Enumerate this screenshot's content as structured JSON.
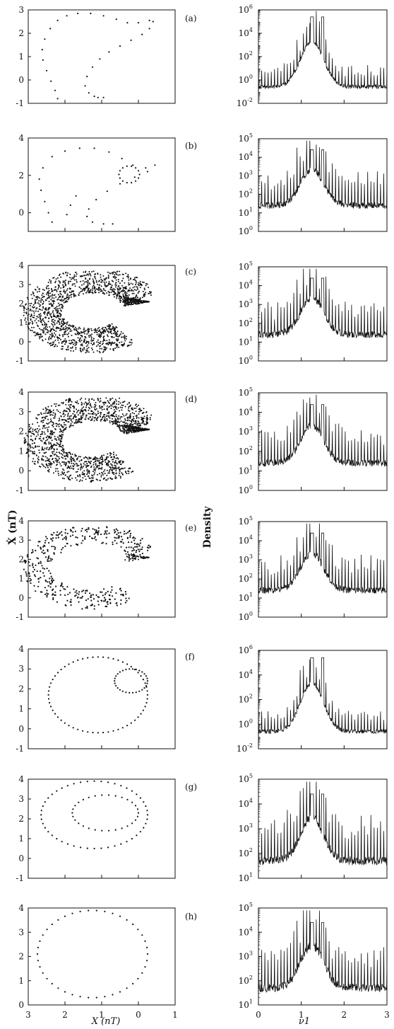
{
  "figure": {
    "left_ylabel": "Ẋ (nT)",
    "left_xlabel": "X (nT)",
    "right_ylabel": "Density",
    "right_xlabel": "ν1"
  },
  "chart_data": [
    {
      "panel": "a",
      "type": "scatter",
      "label": "(a)",
      "xlim": [
        -3,
        1
      ],
      "ylim": [
        -1,
        3
      ],
      "yticks": [
        -1,
        0,
        1,
        2,
        3
      ],
      "curve": [
        [
          -1.95,
          2.75
        ],
        [
          -1.65,
          2.85
        ],
        [
          -1.3,
          2.85
        ],
        [
          -0.95,
          2.75
        ],
        [
          -0.6,
          2.6
        ],
        [
          -0.3,
          2.45
        ],
        [
          0.0,
          2.45
        ],
        [
          0.3,
          2.55
        ],
        [
          0.4,
          2.5
        ],
        [
          0.3,
          2.2
        ],
        [
          0.1,
          1.95
        ],
        [
          -0.2,
          1.7
        ],
        [
          -0.5,
          1.45
        ],
        [
          -0.8,
          1.2
        ],
        [
          -1.05,
          0.9
        ],
        [
          -1.25,
          0.55
        ],
        [
          -1.4,
          0.15
        ],
        [
          -1.45,
          -0.25
        ],
        [
          -1.35,
          -0.55
        ],
        [
          -1.2,
          -0.7
        ]
      ],
      "extra": [
        [
          -2.2,
          2.55
        ],
        [
          -2.4,
          2.2
        ],
        [
          -2.55,
          1.75
        ],
        [
          -2.62,
          1.3
        ],
        [
          -2.6,
          0.85
        ],
        [
          -2.5,
          0.4
        ],
        [
          -2.38,
          -0.05
        ],
        [
          -2.27,
          -0.45
        ],
        [
          -2.2,
          -0.8
        ],
        [
          -1.1,
          -0.75
        ],
        [
          -0.95,
          -0.75
        ]
      ]
    },
    {
      "panel": "b",
      "type": "scatter",
      "label": "(b)",
      "xlim": [
        -3,
        1
      ],
      "ylim": [
        -1,
        4
      ],
      "yticks": [
        0,
        2,
        4
      ],
      "curve": [
        [
          -2.0,
          3.3
        ],
        [
          -1.6,
          3.45
        ],
        [
          -1.2,
          3.45
        ],
        [
          -0.8,
          3.25
        ],
        [
          -0.45,
          2.9
        ],
        [
          -0.15,
          2.55
        ],
        [
          0.2,
          2.4
        ],
        [
          0.45,
          2.55
        ],
        [
          0.25,
          2.2
        ],
        [
          -0.1,
          1.9
        ],
        [
          -0.5,
          1.55
        ],
        [
          -0.85,
          1.15
        ],
        [
          -1.15,
          0.7
        ],
        [
          -1.35,
          0.2
        ],
        [
          -1.4,
          -0.2
        ],
        [
          -1.25,
          -0.5
        ]
      ],
      "loop": [
        [
          -0.25,
          2.05,
          0.28,
          0.45
        ]
      ],
      "extra": [
        [
          -2.35,
          3.0
        ],
        [
          -2.6,
          2.4
        ],
        [
          -2.7,
          1.8
        ],
        [
          -2.65,
          1.2
        ],
        [
          -2.55,
          0.6
        ],
        [
          -2.45,
          0.0
        ],
        [
          -2.35,
          -0.5
        ],
        [
          -0.95,
          -0.6
        ],
        [
          -0.7,
          -0.6
        ],
        [
          -1.7,
          0.9
        ],
        [
          -1.85,
          0.4
        ],
        [
          -1.95,
          -0.1
        ]
      ]
    },
    {
      "panel": "c",
      "type": "scatter",
      "label": "(c)",
      "xlim": [
        -3,
        1
      ],
      "ylim": [
        -1,
        4
      ],
      "yticks": [
        -1,
        0,
        1,
        2,
        3,
        4
      ],
      "density": "high"
    },
    {
      "panel": "d",
      "type": "scatter",
      "label": "(d)",
      "xlim": [
        -3,
        1
      ],
      "ylim": [
        -1,
        4
      ],
      "yticks": [
        -1,
        0,
        1,
        2,
        3,
        4
      ],
      "density": "high"
    },
    {
      "panel": "e",
      "type": "scatter",
      "label": "(e)",
      "xlim": [
        -3,
        1
      ],
      "ylim": [
        -1,
        4
      ],
      "yticks": [
        -1,
        0,
        1,
        2,
        3,
        4
      ],
      "density": "medium"
    },
    {
      "panel": "f",
      "type": "scatter",
      "label": "(f)",
      "xlim": [
        -3,
        1
      ],
      "ylim": [
        -1,
        4
      ],
      "yticks": [
        -1,
        0,
        1,
        2,
        3,
        4
      ],
      "density": "low"
    },
    {
      "panel": "g",
      "type": "scatter",
      "label": "(g)",
      "xlim": [
        -3,
        1
      ],
      "ylim": [
        -1,
        4
      ],
      "yticks": [
        -1,
        0,
        1,
        2,
        3,
        4
      ],
      "density": "low"
    },
    {
      "panel": "h",
      "type": "scatter",
      "label": "(h)",
      "xlim": [
        -3,
        1
      ],
      "ylim": [
        0,
        4
      ],
      "yticks": [
        0,
        1,
        2,
        3,
        4
      ],
      "xticks": [
        "3",
        "2",
        "1",
        "0",
        "1"
      ],
      "density": "low"
    },
    {
      "panel": "a-spectrum",
      "type": "line",
      "yscale": "log",
      "xlim": [
        0,
        3
      ],
      "ylim_exp": [
        -2,
        6
      ],
      "yticks_exp": [
        -2,
        0,
        2,
        4,
        6
      ]
    },
    {
      "panel": "b-spectrum",
      "type": "line",
      "yscale": "log",
      "xlim": [
        0,
        3
      ],
      "ylim_exp": [
        0,
        5
      ],
      "yticks_exp": [
        0,
        1,
        2,
        3,
        4,
        5
      ]
    },
    {
      "panel": "c-spectrum",
      "type": "line",
      "yscale": "log",
      "xlim": [
        0,
        3
      ],
      "ylim_exp": [
        0,
        5
      ],
      "yticks_exp": [
        0,
        1,
        2,
        3,
        4,
        5
      ]
    },
    {
      "panel": "d-spectrum",
      "type": "line",
      "yscale": "log",
      "xlim": [
        0,
        3
      ],
      "ylim_exp": [
        0,
        5
      ],
      "yticks_exp": [
        0,
        1,
        2,
        3,
        4,
        5
      ]
    },
    {
      "panel": "e-spectrum",
      "type": "line",
      "yscale": "log",
      "xlim": [
        0,
        3
      ],
      "ylim_exp": [
        0,
        5
      ],
      "yticks_exp": [
        0,
        1,
        2,
        3,
        4,
        5
      ]
    },
    {
      "panel": "f-spectrum",
      "type": "line",
      "yscale": "log",
      "xlim": [
        0,
        3
      ],
      "ylim_exp": [
        -2,
        6
      ],
      "yticks_exp": [
        -2,
        0,
        2,
        4,
        6
      ]
    },
    {
      "panel": "g-spectrum",
      "type": "line",
      "yscale": "log",
      "xlim": [
        0,
        3
      ],
      "ylim_exp": [
        1,
        5
      ],
      "yticks_exp": [
        1,
        2,
        3,
        4,
        5
      ]
    },
    {
      "panel": "h-spectrum",
      "type": "line",
      "yscale": "log",
      "xlim": [
        0,
        3
      ],
      "ylim_exp": [
        1,
        5
      ],
      "yticks_exp": [
        1,
        2,
        3,
        4,
        5
      ],
      "xticks": [
        "0",
        "1",
        "2",
        "3"
      ]
    }
  ]
}
